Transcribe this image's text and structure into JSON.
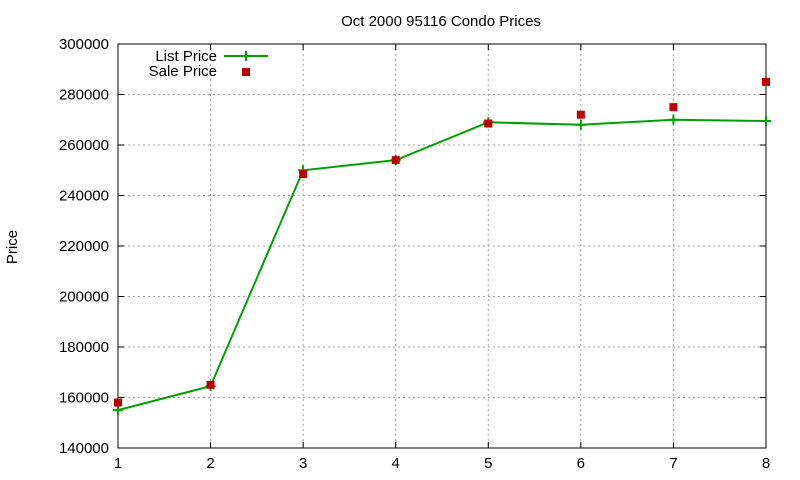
{
  "chart_data": {
    "type": "line",
    "title": "Oct 2000 95116 Condo Prices",
    "xlabel": "",
    "ylabel": "Price",
    "x": [
      1,
      2,
      3,
      4,
      5,
      6,
      7,
      8
    ],
    "xlim": [
      1,
      8
    ],
    "ylim": [
      140000,
      300000
    ],
    "x_ticks": [
      "1",
      "2",
      "3",
      "4",
      "5",
      "6",
      "7",
      "8"
    ],
    "y_ticks": [
      "140000",
      "160000",
      "180000",
      "200000",
      "220000",
      "240000",
      "260000",
      "280000",
      "300000"
    ],
    "grid": true,
    "legend_position": "top-left",
    "series": [
      {
        "name": "List Price",
        "kind": "line-with-plus-markers",
        "color": "#00a000",
        "values": [
          155000,
          164500,
          250000,
          254000,
          269000,
          268000,
          270000,
          269500
        ]
      },
      {
        "name": "Sale Price",
        "kind": "square-markers",
        "color": "#c00000",
        "values": [
          158000,
          165000,
          248500,
          254000,
          268500,
          272000,
          275000,
          285000
        ]
      }
    ]
  }
}
